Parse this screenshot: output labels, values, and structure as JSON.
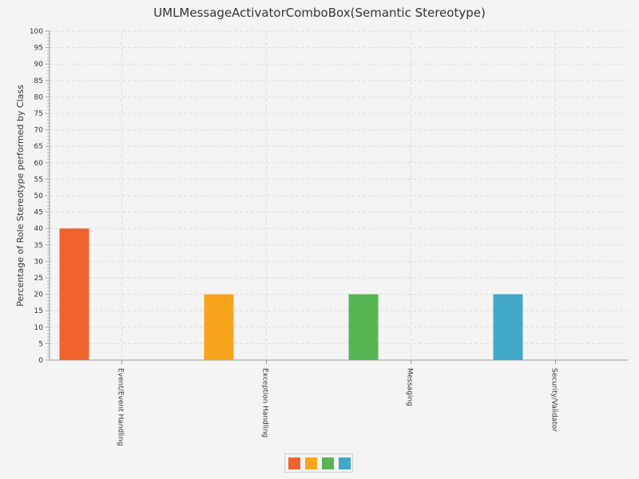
{
  "chart_data": {
    "type": "bar",
    "title": "UMLMessageActivatorComboBox(Semantic Stereotype)",
    "xlabel": "",
    "ylabel": "Percentage of Role Stereotype performed by Class",
    "ylim": [
      0,
      100
    ],
    "ytick_step": 5,
    "yticks": [
      "0",
      "5",
      "10",
      "15",
      "20",
      "25",
      "30",
      "35",
      "40",
      "45",
      "50",
      "55",
      "60",
      "65",
      "70",
      "75",
      "80",
      "85",
      "90",
      "95",
      "100"
    ],
    "grid": true,
    "legend": "bottom-center",
    "categories": [
      "Event/Event Handling",
      "Exception Handling",
      "Messaging",
      "Security/Validator"
    ],
    "values": [
      40,
      20,
      20,
      20
    ],
    "colors": [
      "#f0622e",
      "#f8a51e",
      "#56b553",
      "#40a7c6"
    ]
  }
}
